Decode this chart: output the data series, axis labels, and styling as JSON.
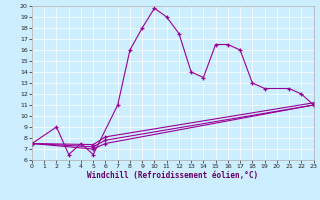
{
  "xlabel": "Windchill (Refroidissement éolien,°C)",
  "bg_color": "#cceeff",
  "line_color": "#990099",
  "xlim": [
    0,
    23
  ],
  "ylim": [
    6,
    20
  ],
  "xticks": [
    0,
    1,
    2,
    3,
    4,
    5,
    6,
    7,
    8,
    9,
    10,
    11,
    12,
    13,
    14,
    15,
    16,
    17,
    18,
    19,
    20,
    21,
    22,
    23
  ],
  "yticks": [
    6,
    7,
    8,
    9,
    10,
    11,
    12,
    13,
    14,
    15,
    16,
    17,
    18,
    19,
    20
  ],
  "series": [
    [
      0,
      7.5,
      2,
      9.0,
      3,
      6.5,
      4,
      7.5,
      5,
      6.5,
      7,
      11.0,
      8,
      16.0,
      9,
      18.0,
      10,
      19.8,
      11,
      19.0,
      12,
      17.5,
      13,
      14.0,
      14,
      13.5,
      15,
      16.5,
      16,
      16.5,
      17,
      16.0,
      18,
      13.0,
      19,
      12.5,
      21,
      12.5,
      22,
      12.0,
      23,
      11.0
    ],
    [
      0,
      7.5,
      5,
      7.0,
      6,
      7.5,
      23,
      11.0
    ],
    [
      0,
      7.5,
      5,
      7.2,
      6,
      7.8,
      23,
      11.0
    ],
    [
      0,
      7.5,
      5,
      7.4,
      6,
      8.1,
      23,
      11.2
    ]
  ]
}
